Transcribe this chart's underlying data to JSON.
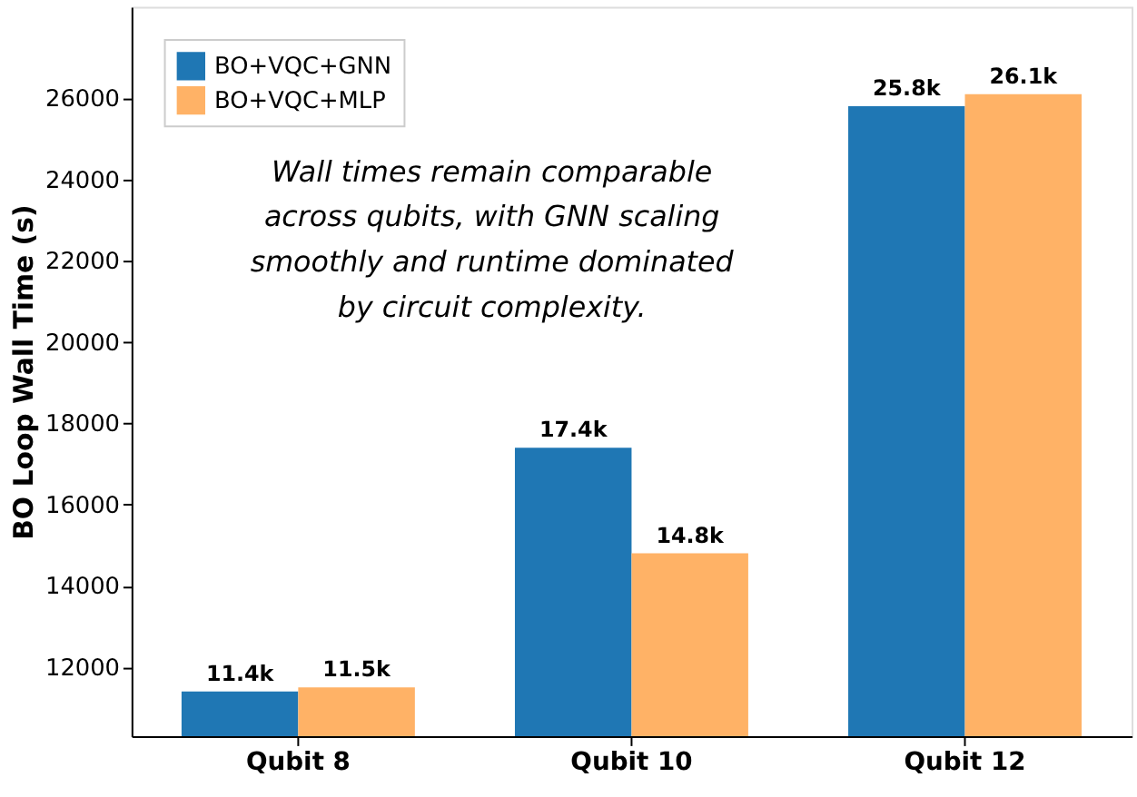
{
  "chart_data": {
    "type": "bar",
    "ylabel": "BO Loop Wall Time (s)",
    "categories": [
      "Qubit 8",
      "Qubit 10",
      "Qubit 12"
    ],
    "series": [
      {
        "name": "BO+VQC+GNN",
        "color": "#1f77b4",
        "values": [
          11400,
          17400,
          25800
        ],
        "value_labels": [
          "11.4k",
          "17.4k",
          "25.8k"
        ]
      },
      {
        "name": "BO+VQC+MLP",
        "color": "#ffb266",
        "values": [
          11500,
          14800,
          26100
        ],
        "value_labels": [
          "11.5k",
          "14.8k",
          "26.1k"
        ]
      }
    ],
    "ylim": [
      10300,
      28250
    ],
    "yticks": [
      12000,
      14000,
      16000,
      18000,
      20000,
      22000,
      24000,
      26000
    ],
    "annotations": [
      "Wall times remain comparable across qubits, with GNN scaling smoothly and runtime dominated by circuit complexity."
    ],
    "legend": "top left",
    "grid": false
  }
}
